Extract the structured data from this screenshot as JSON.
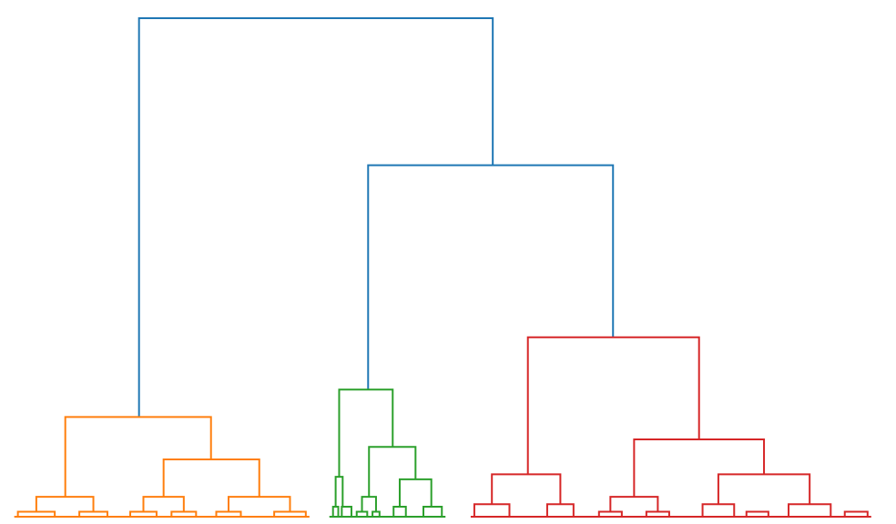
{
  "chart_data": {
    "type": "dendrogram",
    "title": "",
    "xlabel": "",
    "ylabel": "",
    "axes_visible": false,
    "grid": false,
    "ylim": [
      0,
      100
    ],
    "xlim": [
      0,
      100
    ],
    "colors": {
      "above_threshold": "#1f77b4",
      "cluster_1": "#ff7f0e",
      "cluster_2": "#2ca02c",
      "cluster_3": "#d62728"
    },
    "links": [
      {
        "xl": 14.8,
        "xr": 55.1,
        "yl": 20.0,
        "yr": 70.5,
        "h": 100,
        "color": "above_threshold"
      },
      {
        "xl": 40.9,
        "xr": 68.8,
        "yl": 25.5,
        "yr": 36.0,
        "h": 70.5,
        "color": "above_threshold"
      },
      {
        "xl": 6.4,
        "xr": 23.0,
        "yl": 4.0,
        "yr": 11.5,
        "h": 20.0,
        "color": "cluster_1"
      },
      {
        "xl": 17.6,
        "xr": 28.5,
        "yl": 4.0,
        "yr": 4.0,
        "h": 11.5,
        "color": "cluster_1"
      },
      {
        "xl": 3.1,
        "xr": 9.6,
        "yl": 1.0,
        "yr": 1.0,
        "h": 4.0,
        "color": "cluster_1"
      },
      {
        "xl": 15.3,
        "xr": 19.9,
        "yl": 1.0,
        "yr": 1.0,
        "h": 4.0,
        "color": "cluster_1"
      },
      {
        "xl": 25.0,
        "xr": 32.0,
        "yl": 1.0,
        "yr": 1.0,
        "h": 4.0,
        "color": "cluster_1"
      },
      {
        "xl": 1.0,
        "xr": 5.2,
        "yl": 0,
        "yr": 0,
        "h": 1.0,
        "color": "cluster_1"
      },
      {
        "xl": 8.0,
        "xr": 11.2,
        "yl": 0,
        "yr": 0,
        "h": 1.0,
        "color": "cluster_1"
      },
      {
        "xl": 13.8,
        "xr": 16.8,
        "yl": 0,
        "yr": 0,
        "h": 1.0,
        "color": "cluster_1"
      },
      {
        "xl": 18.5,
        "xr": 21.3,
        "yl": 0,
        "yr": 0,
        "h": 1.0,
        "color": "cluster_1"
      },
      {
        "xl": 23.6,
        "xr": 26.4,
        "yl": 0,
        "yr": 0,
        "h": 1.0,
        "color": "cluster_1"
      },
      {
        "xl": 30.2,
        "xr": 33.8,
        "yl": 0,
        "yr": 0,
        "h": 1.0,
        "color": "cluster_1"
      },
      {
        "xl": 37.6,
        "xr": 43.7,
        "yl": 8.0,
        "yr": 14.0,
        "h": 25.5,
        "color": "cluster_2"
      },
      {
        "xl": 41.0,
        "xr": 46.3,
        "yl": 4.0,
        "yr": 7.5,
        "h": 14.0,
        "color": "cluster_2"
      },
      {
        "xl": 44.5,
        "xr": 48.1,
        "yl": 2.0,
        "yr": 2.0,
        "h": 7.5,
        "color": "cluster_2"
      },
      {
        "xl": 37.2,
        "xr": 38.0,
        "yl": 2.0,
        "yr": 2.0,
        "h": 8.0,
        "color": "cluster_2"
      },
      {
        "xl": 40.2,
        "xr": 41.8,
        "yl": 1.0,
        "yr": 1.0,
        "h": 4.0,
        "color": "cluster_2"
      },
      {
        "xl": 37.9,
        "xr": 39.0,
        "yl": 0,
        "yr": 0,
        "h": 2.0,
        "color": "cluster_2"
      },
      {
        "xl": 36.9,
        "xr": 37.5,
        "yl": 0,
        "yr": 0,
        "h": 2.0,
        "color": "cluster_2"
      },
      {
        "xl": 43.8,
        "xr": 45.2,
        "yl": 0,
        "yr": 0,
        "h": 2.0,
        "color": "cluster_2"
      },
      {
        "xl": 47.2,
        "xr": 49.3,
        "yl": 0,
        "yr": 0,
        "h": 2.0,
        "color": "cluster_2"
      },
      {
        "xl": 39.6,
        "xr": 40.8,
        "yl": 0,
        "yr": 0,
        "h": 1.0,
        "color": "cluster_2"
      },
      {
        "xl": 41.4,
        "xr": 42.2,
        "yl": 0,
        "yr": 0,
        "h": 1.0,
        "color": "cluster_2"
      },
      {
        "xl": 59.1,
        "xr": 78.6,
        "yl": 8.5,
        "yr": 15.5,
        "h": 36.0,
        "color": "cluster_3"
      },
      {
        "xl": 71.2,
        "xr": 86.0,
        "yl": 4.0,
        "yr": 8.5,
        "h": 15.5,
        "color": "cluster_3"
      },
      {
        "xl": 55.0,
        "xr": 62.8,
        "yl": 2.5,
        "yr": 2.5,
        "h": 8.5,
        "color": "cluster_3"
      },
      {
        "xl": 80.8,
        "xr": 91.2,
        "yl": 2.5,
        "yr": 2.5,
        "h": 8.5,
        "color": "cluster_3"
      },
      {
        "xl": 68.5,
        "xr": 73.9,
        "yl": 1.0,
        "yr": 1.0,
        "h": 4.0,
        "color": "cluster_3"
      },
      {
        "xl": 53.0,
        "xr": 57.0,
        "yl": 0,
        "yr": 0,
        "h": 2.5,
        "color": "cluster_3"
      },
      {
        "xl": 61.3,
        "xr": 64.3,
        "yl": 0,
        "yr": 0,
        "h": 2.5,
        "color": "cluster_3"
      },
      {
        "xl": 79.0,
        "xr": 82.6,
        "yl": 0,
        "yr": 0,
        "h": 2.5,
        "color": "cluster_3"
      },
      {
        "xl": 88.8,
        "xr": 93.6,
        "yl": 0,
        "yr": 0,
        "h": 2.5,
        "color": "cluster_3"
      },
      {
        "xl": 67.2,
        "xr": 69.8,
        "yl": 0,
        "yr": 0,
        "h": 1.0,
        "color": "cluster_3"
      },
      {
        "xl": 72.6,
        "xr": 75.2,
        "yl": 0,
        "yr": 0,
        "h": 1.0,
        "color": "cluster_3"
      },
      {
        "xl": 84.0,
        "xr": 86.5,
        "yl": 0,
        "yr": 0,
        "h": 1.0,
        "color": "cluster_3"
      },
      {
        "xl": 95.2,
        "xr": 97.8,
        "yl": 0,
        "yr": 0,
        "h": 1.0,
        "color": "cluster_3"
      }
    ]
  }
}
